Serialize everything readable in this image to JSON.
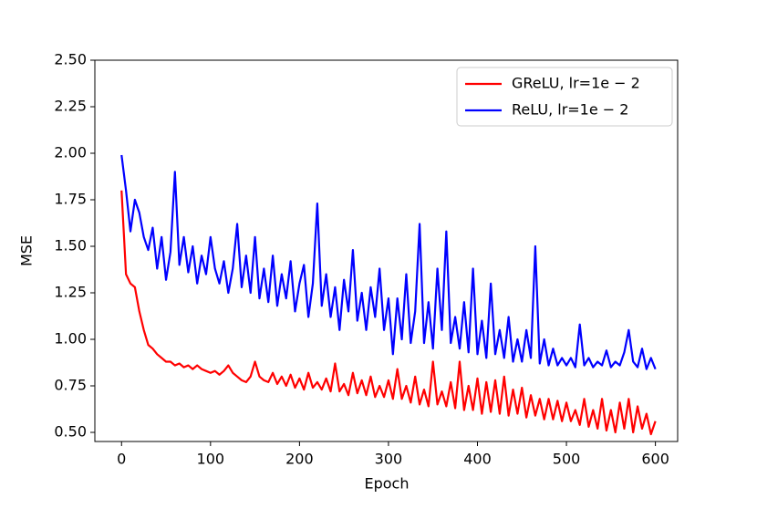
{
  "chart_data": {
    "type": "line",
    "x_label": "Epoch",
    "y_label": "MSE",
    "xlim": [
      -30,
      625
    ],
    "ylim": [
      0.451,
      2.5
    ],
    "xticks": [
      0,
      100,
      200,
      300,
      400,
      500,
      600
    ],
    "yticks": [
      {
        "value": 0.5,
        "label": "0.50"
      },
      {
        "value": 0.75,
        "label": "0.75"
      },
      {
        "value": 1.0,
        "label": "1.00"
      },
      {
        "value": 1.25,
        "label": "1.25"
      },
      {
        "value": 1.5,
        "label": "1.50"
      },
      {
        "value": 1.75,
        "label": "1.75"
      },
      {
        "value": 2.0,
        "label": "2.00"
      },
      {
        "value": 2.25,
        "label": "2.25"
      },
      {
        "value": 2.5,
        "label": "2.50"
      }
    ],
    "legend": "upper right",
    "x": [
      0,
      5,
      10,
      15,
      20,
      25,
      30,
      35,
      40,
      45,
      50,
      55,
      60,
      65,
      70,
      75,
      80,
      85,
      90,
      95,
      100,
      105,
      110,
      115,
      120,
      125,
      130,
      135,
      140,
      145,
      150,
      155,
      160,
      165,
      170,
      175,
      180,
      185,
      190,
      195,
      200,
      205,
      210,
      215,
      220,
      225,
      230,
      235,
      240,
      245,
      250,
      255,
      260,
      265,
      270,
      275,
      280,
      285,
      290,
      295,
      300,
      305,
      310,
      315,
      320,
      325,
      330,
      335,
      340,
      345,
      350,
      355,
      360,
      365,
      370,
      375,
      380,
      385,
      390,
      395,
      400,
      405,
      410,
      415,
      420,
      425,
      430,
      435,
      440,
      445,
      450,
      455,
      460,
      465,
      470,
      475,
      480,
      485,
      490,
      495,
      500,
      505,
      510,
      515,
      520,
      525,
      530,
      535,
      540,
      545,
      550,
      555,
      560,
      565,
      570,
      575,
      580,
      585,
      590,
      595,
      600
    ],
    "series": [
      {
        "name": "GReLU, lr=1e − 2",
        "color": "#ff0000",
        "values": [
          1.8,
          1.35,
          1.3,
          1.28,
          1.15,
          1.05,
          0.97,
          0.95,
          0.92,
          0.9,
          0.88,
          0.88,
          0.86,
          0.87,
          0.85,
          0.86,
          0.84,
          0.86,
          0.84,
          0.83,
          0.82,
          0.83,
          0.81,
          0.83,
          0.86,
          0.82,
          0.8,
          0.78,
          0.77,
          0.8,
          0.88,
          0.8,
          0.78,
          0.77,
          0.82,
          0.76,
          0.8,
          0.75,
          0.81,
          0.74,
          0.79,
          0.73,
          0.82,
          0.74,
          0.77,
          0.73,
          0.79,
          0.72,
          0.87,
          0.72,
          0.76,
          0.7,
          0.82,
          0.71,
          0.78,
          0.7,
          0.8,
          0.69,
          0.75,
          0.69,
          0.78,
          0.68,
          0.84,
          0.68,
          0.75,
          0.66,
          0.8,
          0.65,
          0.73,
          0.64,
          0.88,
          0.65,
          0.72,
          0.64,
          0.77,
          0.63,
          0.88,
          0.62,
          0.75,
          0.62,
          0.79,
          0.6,
          0.77,
          0.61,
          0.78,
          0.6,
          0.8,
          0.59,
          0.73,
          0.6,
          0.74,
          0.58,
          0.7,
          0.59,
          0.68,
          0.57,
          0.68,
          0.57,
          0.67,
          0.56,
          0.66,
          0.56,
          0.62,
          0.54,
          0.68,
          0.53,
          0.62,
          0.52,
          0.68,
          0.51,
          0.62,
          0.5,
          0.66,
          0.52,
          0.68,
          0.5,
          0.64,
          0.52,
          0.6,
          0.49,
          0.56
        ]
      },
      {
        "name": "ReLU, lr=1e − 2",
        "color": "#0000ff",
        "values": [
          1.99,
          1.8,
          1.58,
          1.75,
          1.68,
          1.55,
          1.48,
          1.6,
          1.38,
          1.55,
          1.32,
          1.47,
          1.9,
          1.4,
          1.55,
          1.36,
          1.5,
          1.3,
          1.45,
          1.35,
          1.55,
          1.38,
          1.3,
          1.42,
          1.25,
          1.38,
          1.62,
          1.28,
          1.45,
          1.25,
          1.55,
          1.22,
          1.38,
          1.2,
          1.45,
          1.18,
          1.35,
          1.22,
          1.42,
          1.15,
          1.3,
          1.4,
          1.12,
          1.3,
          1.73,
          1.18,
          1.35,
          1.12,
          1.28,
          1.05,
          1.32,
          1.15,
          1.48,
          1.1,
          1.25,
          1.05,
          1.28,
          1.12,
          1.38,
          1.05,
          1.22,
          0.92,
          1.22,
          1.0,
          1.35,
          0.98,
          1.15,
          1.62,
          0.98,
          1.2,
          0.95,
          1.38,
          1.05,
          1.58,
          0.98,
          1.12,
          0.95,
          1.2,
          0.93,
          1.38,
          0.92,
          1.1,
          0.9,
          1.3,
          0.92,
          1.05,
          0.9,
          1.12,
          0.88,
          1.0,
          0.88,
          1.05,
          0.9,
          1.5,
          0.87,
          1.0,
          0.86,
          0.95,
          0.86,
          0.9,
          0.86,
          0.9,
          0.85,
          1.08,
          0.86,
          0.9,
          0.85,
          0.88,
          0.86,
          0.94,
          0.85,
          0.88,
          0.86,
          0.93,
          1.05,
          0.88,
          0.85,
          0.95,
          0.84,
          0.9,
          0.84
        ]
      }
    ]
  }
}
